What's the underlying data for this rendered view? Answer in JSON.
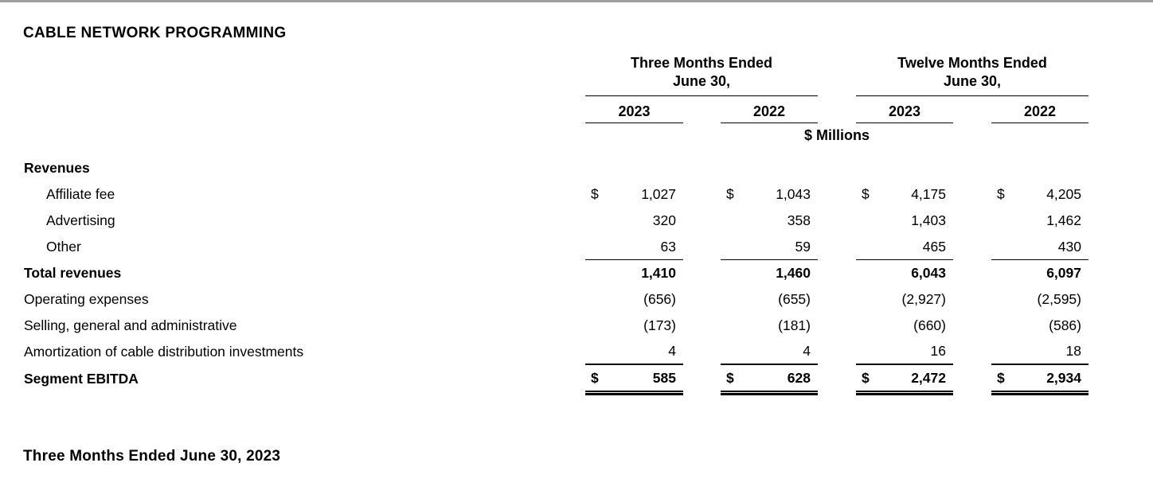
{
  "page": {
    "title": "CABLE NETWORK PROGRAMMING",
    "footer_heading": "Three Months Ended June 30, 2023",
    "divider_color": "#9e9e9e",
    "text_color": "#000000",
    "background_color": "#ffffff"
  },
  "table": {
    "units_label": "$ Millions",
    "col_groups": [
      {
        "line1": "Three Months Ended",
        "line2": "June 30,"
      },
      {
        "line1": "Twelve Months Ended",
        "line2": "June 30,"
      }
    ],
    "year_headers": [
      "2023",
      "2022",
      "2023",
      "2022"
    ],
    "section_header": "Revenues",
    "rows": [
      {
        "label": "Affiliate fee",
        "currency": [
          "$",
          "$",
          "$",
          "$"
        ],
        "values": [
          "1,027",
          "1,043",
          "4,175",
          "4,205"
        ]
      },
      {
        "label": "Advertising",
        "values": [
          "320",
          "358",
          "1,403",
          "1,462"
        ]
      },
      {
        "label": "Other",
        "values": [
          "63",
          "59",
          "465",
          "430"
        ]
      },
      {
        "label": "Total revenues",
        "values": [
          "1,410",
          "1,460",
          "6,043",
          "6,097"
        ]
      },
      {
        "label": "Operating expenses",
        "values": [
          "(656)",
          "(655)",
          "(2,927)",
          "(2,595)"
        ]
      },
      {
        "label": "Selling, general and administrative",
        "values": [
          "(173)",
          "(181)",
          "(660)",
          "(586)"
        ]
      },
      {
        "label": "Amortization of cable distribution investments",
        "values": [
          "4",
          "4",
          "16",
          "18"
        ]
      },
      {
        "label": "Segment EBITDA",
        "currency": [
          "$",
          "$",
          "$",
          "$"
        ],
        "values": [
          "585",
          "628",
          "2,472",
          "2,934"
        ]
      }
    ]
  }
}
